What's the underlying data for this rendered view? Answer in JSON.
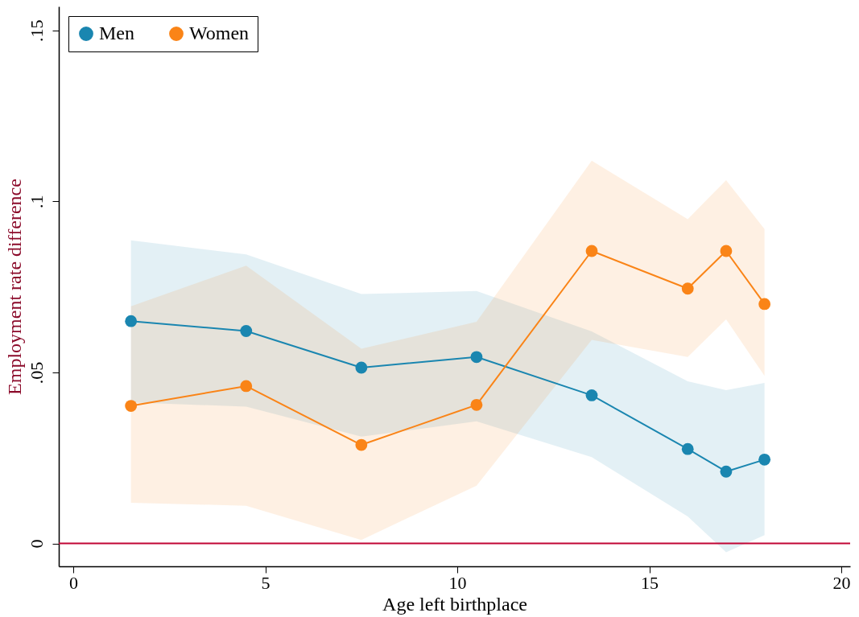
{
  "chart_data": {
    "type": "line",
    "xlabel": "Age left birthplace",
    "ylabel": "Employment rate difference",
    "x": [
      1.5,
      4.5,
      7.5,
      10.5,
      13.5,
      16,
      17,
      18
    ],
    "series": [
      {
        "name": "Men",
        "color": "#1a86b0",
        "values": [
          0.065,
          0.0621,
          0.0514,
          0.0545,
          0.0433,
          0.0276,
          0.021,
          0.0245
        ],
        "lower": [
          0.0412,
          0.04,
          0.0312,
          0.0357,
          0.0252,
          0.0079,
          -0.0026,
          0.0024
        ],
        "upper": [
          0.0886,
          0.0845,
          0.0729,
          0.0738,
          0.062,
          0.0474,
          0.0448,
          0.0469
        ]
      },
      {
        "name": "Women",
        "color": "#fa8417",
        "values": [
          0.0402,
          0.046,
          0.0288,
          0.0405,
          0.0855,
          0.0745,
          0.0855,
          0.07
        ],
        "lower": [
          0.0119,
          0.011,
          0.001,
          0.0169,
          0.0595,
          0.0545,
          0.0655,
          0.049
        ],
        "upper": [
          0.0693,
          0.0812,
          0.0569,
          0.0648,
          0.1119,
          0.0948,
          0.1062,
          0.0919
        ]
      }
    ],
    "xlim": [
      -0.38,
      20.23
    ],
    "xticks": [
      0,
      5,
      10,
      15,
      20
    ],
    "ylim": [
      -0.0067,
      0.157
    ],
    "yticks": [
      {
        "value": 0,
        "label": "0"
      },
      {
        "value": 0.05,
        "label": ".05"
      },
      {
        "value": 0.1,
        "label": ".1"
      },
      {
        "value": 0.15,
        "label": ".15"
      }
    ],
    "ref_lines": [
      {
        "axis": "y",
        "value": 0,
        "color": "#c10534"
      }
    ],
    "legend": "top left",
    "grid": false,
    "marker": "circle",
    "line_style": "solid"
  }
}
